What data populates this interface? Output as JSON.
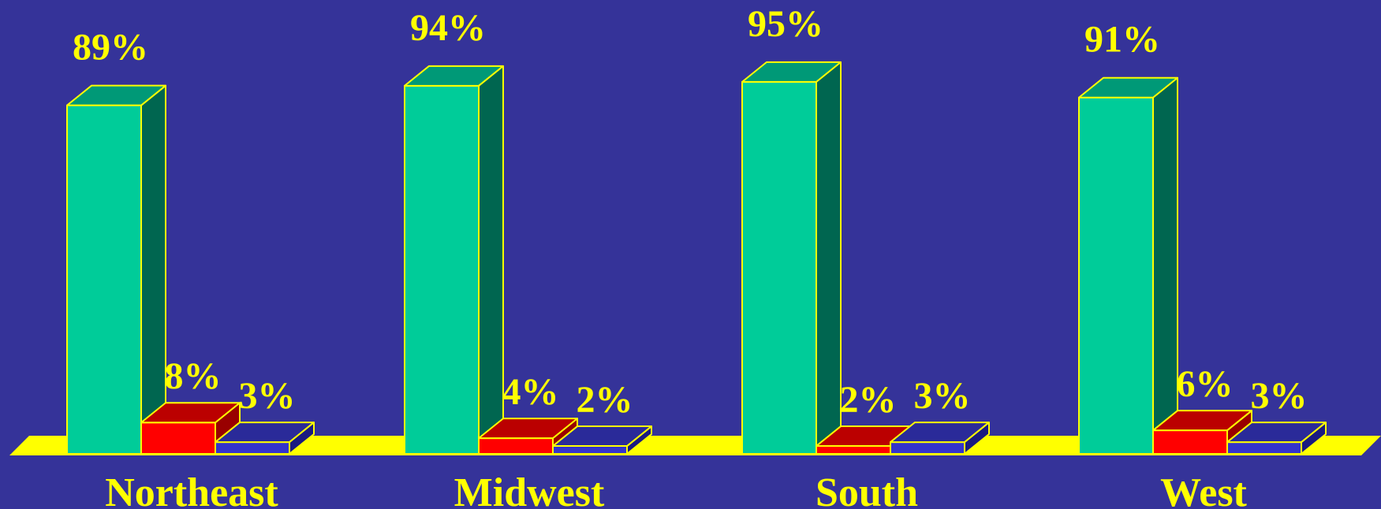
{
  "chart_data": {
    "type": "bar",
    "title": "",
    "xlabel": "",
    "ylabel": "",
    "ylim": [
      0,
      100
    ],
    "grid": false,
    "legend": "none",
    "categories": [
      "Northeast",
      "Midwest",
      "South",
      "West"
    ],
    "series": [
      {
        "values": [
          89,
          94,
          95,
          91
        ],
        "color": "#00CC99"
      },
      {
        "values": [
          8,
          4,
          2,
          6
        ],
        "color": "#FF0000"
      },
      {
        "values": [
          3,
          2,
          3,
          3
        ],
        "color": "#3333CC"
      }
    ],
    "data_labels": [
      [
        "89%",
        "94%",
        "95%",
        "91%"
      ],
      [
        "8%",
        "4%",
        "2%",
        "6%"
      ],
      [
        "3%",
        "2%",
        "3%",
        "3%"
      ]
    ]
  },
  "colors": {
    "background": "#353399",
    "floor": "#FFFF00",
    "outline": "#FFFF00",
    "label": "#FFFF00",
    "series_side": [
      "#006650",
      "#990000",
      "#1A1A80"
    ],
    "series_top": [
      "#009977",
      "#BB0000",
      "#2A2A99"
    ]
  }
}
